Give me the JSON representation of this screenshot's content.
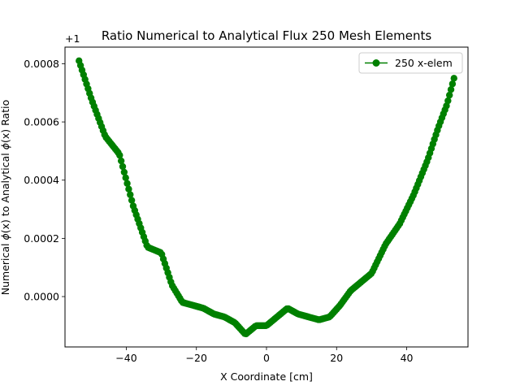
{
  "chart_data": {
    "type": "line",
    "title": "Ratio Numerical to Analytical Flux 250 Mesh Elements",
    "xlabel": "X Coordinate [cm]",
    "ylabel_prefix": "Numerical ",
    "ylabel_mid": " to Analytical ",
    "ylabel_suffix": " Ratio",
    "ylabel_phi": "ϕ",
    "ylabel_arg": "(x)",
    "offset_label": "+1",
    "xlim": [
      -57.5,
      57.5
    ],
    "ylim": [
      -0.000173,
      0.000857
    ],
    "xticks": [
      -40,
      -20,
      0,
      20,
      40
    ],
    "xtick_labels": [
      "−40",
      "−20",
      "0",
      "20",
      "40"
    ],
    "yticks": [
      0.0,
      0.0002,
      0.0004,
      0.0006,
      0.0008
    ],
    "ytick_labels": [
      "0.0000",
      "0.0002",
      "0.0004",
      "0.0006",
      "0.0008"
    ],
    "grid": false,
    "legend_position": "top-right",
    "series": [
      {
        "name": "250 x-elem",
        "color": "#008000",
        "marker": "circle",
        "x": [
          -53.5,
          -50,
          -46,
          -42,
          -38,
          -34,
          -30,
          -27,
          -24,
          -21,
          -18,
          -15,
          -12,
          -9,
          -6,
          -3,
          0,
          3,
          6,
          9,
          12,
          15,
          18,
          21,
          24,
          27,
          30,
          34,
          38,
          42,
          46,
          49,
          51.5,
          53.5
        ],
        "y": [
          0.00081,
          0.00068,
          0.00055,
          0.00049,
          0.00031,
          0.00017,
          0.00015,
          4e-05,
          -2e-05,
          -3e-05,
          -4e-05,
          -6e-05,
          -7e-05,
          -9e-05,
          -0.00013,
          -0.0001,
          -0.0001,
          -7e-05,
          -4e-05,
          -6e-05,
          -7e-05,
          -8e-05,
          -7e-05,
          -3e-05,
          2e-05,
          5e-05,
          8e-05,
          0.00018,
          0.00025,
          0.00035,
          0.00047,
          0.00058,
          0.00066,
          0.00075
        ]
      }
    ]
  }
}
